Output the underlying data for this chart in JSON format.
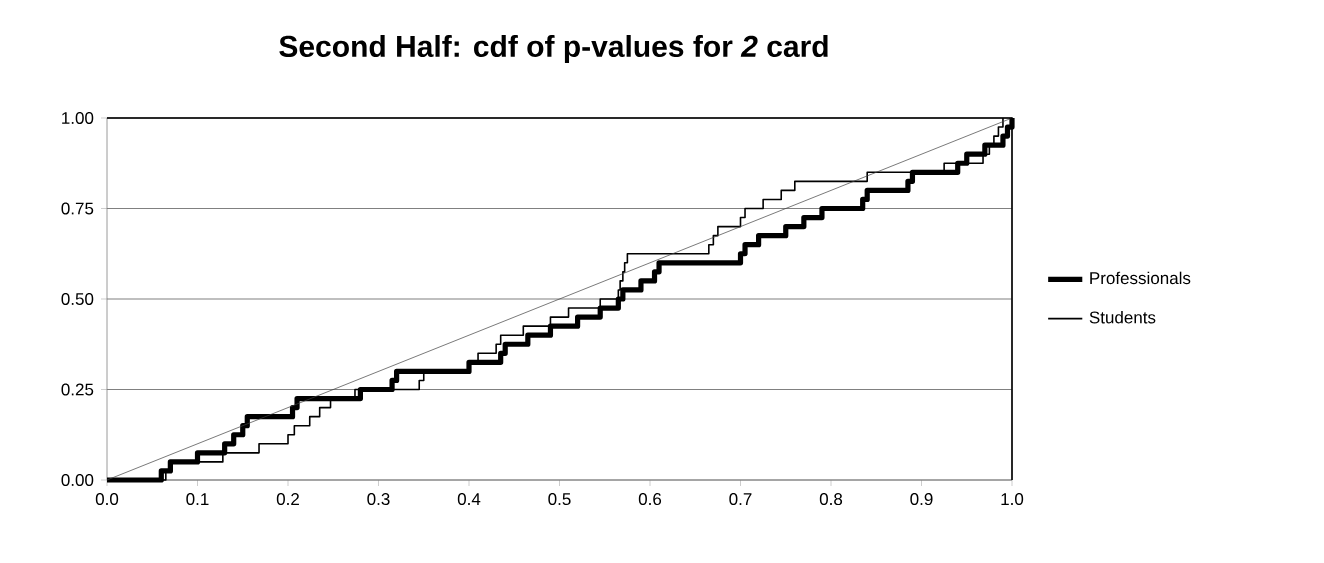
{
  "chart_data": {
    "type": "step",
    "title": "Second Half: cdf of p-values for *2* card",
    "xlim": [
      0,
      1
    ],
    "ylim": [
      0,
      1
    ],
    "xticks": [
      {
        "value": 0,
        "label": "0.0"
      },
      0.1,
      0.2,
      0.3,
      0.4,
      0.5,
      0.6,
      0.7,
      0.8,
      0.9,
      {
        "value": 1,
        "label": "1.0"
      }
    ],
    "yticks": [
      {
        "value": 0,
        "label": "0.00"
      },
      0.25,
      {
        "value": 0.5,
        "label": "0.50"
      },
      0.75,
      {
        "value": 1,
        "label": "1.00"
      }
    ],
    "grid": "y",
    "legend": "right",
    "series": [
      {
        "name": "Professionals",
        "color": "#000000",
        "x": [
          0,
          0.06,
          0.07,
          0.1,
          0.13,
          0.14,
          0.15,
          0.155,
          0.205,
          0.21,
          0.28,
          0.315,
          0.32,
          0.4,
          0.435,
          0.44,
          0.465,
          0.49,
          0.52,
          0.545,
          0.565,
          0.57,
          0.59,
          0.605,
          0.61,
          0.7,
          0.705,
          0.72,
          0.75,
          0.77,
          0.79,
          0.835,
          0.84,
          0.885,
          0.89,
          0.94,
          0.95,
          0.97,
          0.99,
          0.995,
          1.0
        ],
        "values": [
          0,
          0.025,
          0.05,
          0.075,
          0.1,
          0.125,
          0.15,
          0.175,
          0.2,
          0.225,
          0.25,
          0.275,
          0.3,
          0.325,
          0.35,
          0.375,
          0.4,
          0.425,
          0.45,
          0.475,
          0.5,
          0.525,
          0.55,
          0.575,
          0.6,
          0.625,
          0.65,
          0.675,
          0.7,
          0.725,
          0.75,
          0.775,
          0.8,
          0.825,
          0.85,
          0.875,
          0.9,
          0.925,
          0.95,
          0.975,
          1.0
        ]
      },
      {
        "name": "Students",
        "color": "#000000",
        "x": [
          0,
          0.065,
          0.072,
          0.128,
          0.168,
          0.2,
          0.207,
          0.224,
          0.235,
          0.247,
          0.274,
          0.345,
          0.35,
          0.4,
          0.41,
          0.43,
          0.435,
          0.46,
          0.49,
          0.51,
          0.545,
          0.565,
          0.567,
          0.57,
          0.572,
          0.575,
          0.665,
          0.67,
          0.675,
          0.7,
          0.705,
          0.725,
          0.745,
          0.76,
          0.84,
          0.925,
          0.968,
          0.975,
          0.98,
          0.985,
          0.99
        ],
        "values": [
          0,
          0.025,
          0.05,
          0.075,
          0.1,
          0.125,
          0.15,
          0.175,
          0.2,
          0.225,
          0.25,
          0.275,
          0.3,
          0.325,
          0.35,
          0.375,
          0.4,
          0.425,
          0.45,
          0.475,
          0.5,
          0.525,
          0.55,
          0.575,
          0.6,
          0.625,
          0.65,
          0.675,
          0.7,
          0.725,
          0.75,
          0.775,
          0.8,
          0.825,
          0.85,
          0.875,
          0.9,
          0.925,
          0.95,
          0.975,
          1.0
        ]
      },
      {
        "color": "#404040",
        "type": "line",
        "x": [
          0,
          1
        ],
        "values": [
          0,
          1
        ]
      }
    ]
  }
}
